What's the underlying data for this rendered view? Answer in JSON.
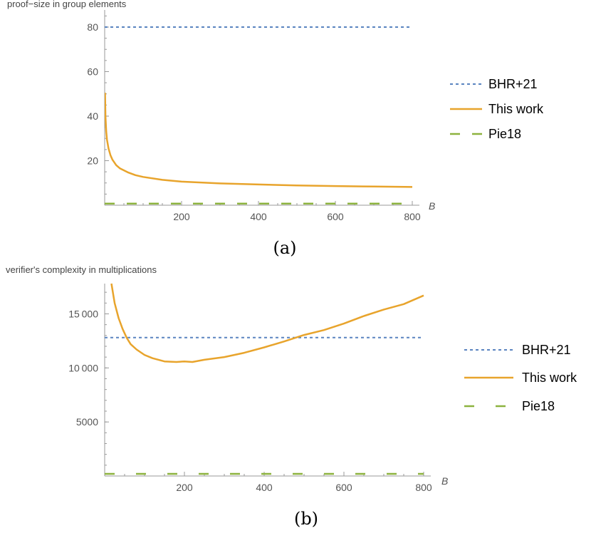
{
  "colors": {
    "bhr21": "#5a84c0",
    "this_work": "#e8a42c",
    "pie18": "#8db33f",
    "axis": "#999999",
    "tick_text": "#555555"
  },
  "chart_data": [
    {
      "type": "line",
      "panel_caption": "(a)",
      "ylabel": "proof−size in group elements",
      "xlabel": "B",
      "xlim": [
        0,
        800
      ],
      "ylim": [
        0,
        80
      ],
      "x_ticks": [
        200,
        400,
        600,
        800
      ],
      "x_tick_labels": [
        "200",
        "400",
        "600",
        "800"
      ],
      "y_ticks": [
        20,
        40,
        60,
        80
      ],
      "y_tick_labels": [
        "20",
        "40",
        "60",
        "80"
      ],
      "legend_position": "right",
      "grid": false,
      "series": [
        {
          "name": "BHR+21",
          "style": "dotted",
          "color": "#5a84c0",
          "x": [
            0,
            800
          ],
          "y": [
            80,
            80
          ]
        },
        {
          "name": "This work",
          "style": "solid",
          "color": "#e8a42c",
          "x": [
            1,
            2,
            4,
            6,
            10,
            15,
            20,
            30,
            40,
            60,
            80,
            100,
            150,
            200,
            300,
            400,
            500,
            600,
            700,
            800
          ],
          "y": [
            50.5,
            40,
            33,
            29.5,
            25.5,
            22.5,
            20.5,
            18,
            16.5,
            14.8,
            13.5,
            12.7,
            11.4,
            10.6,
            9.8,
            9.3,
            8.9,
            8.6,
            8.4,
            8.2
          ]
        },
        {
          "name": "Pie18",
          "style": "dashed",
          "color": "#8db33f",
          "x": [
            0,
            800
          ],
          "y": [
            0.7,
            0.7
          ]
        }
      ]
    },
    {
      "type": "line",
      "panel_caption": "(b)",
      "ylabel": "verifier's complexity in multiplications",
      "xlabel": "B",
      "xlim": [
        0,
        800
      ],
      "ylim": [
        0,
        17800
      ],
      "x_ticks": [
        200,
        400,
        600,
        800
      ],
      "x_tick_labels": [
        "200",
        "400",
        "600",
        "800"
      ],
      "y_ticks": [
        5000,
        10000,
        15000
      ],
      "y_tick_labels": [
        "5000",
        "10 000",
        "15 000"
      ],
      "legend_position": "right",
      "grid": false,
      "series": [
        {
          "name": "BHR+21",
          "style": "dotted",
          "color": "#5a84c0",
          "x": [
            0,
            800
          ],
          "y": [
            12800,
            12800
          ]
        },
        {
          "name": "This work",
          "style": "solid",
          "color": "#e8a42c",
          "x": [
            17,
            25,
            35,
            45,
            55,
            65,
            80,
            100,
            120,
            150,
            180,
            200,
            220,
            250,
            300,
            350,
            400,
            450,
            500,
            550,
            600,
            650,
            700,
            750,
            800
          ],
          "y": [
            17800,
            16000,
            14600,
            13600,
            12800,
            12200,
            11700,
            11200,
            10900,
            10600,
            10550,
            10600,
            10550,
            10750,
            11000,
            11400,
            11900,
            12450,
            13050,
            13500,
            14100,
            14800,
            15400,
            15900,
            16700
          ]
        },
        {
          "name": "Pie18",
          "style": "dashed",
          "color": "#8db33f",
          "x": [
            0,
            800
          ],
          "y": [
            200,
            200
          ]
        }
      ]
    }
  ]
}
